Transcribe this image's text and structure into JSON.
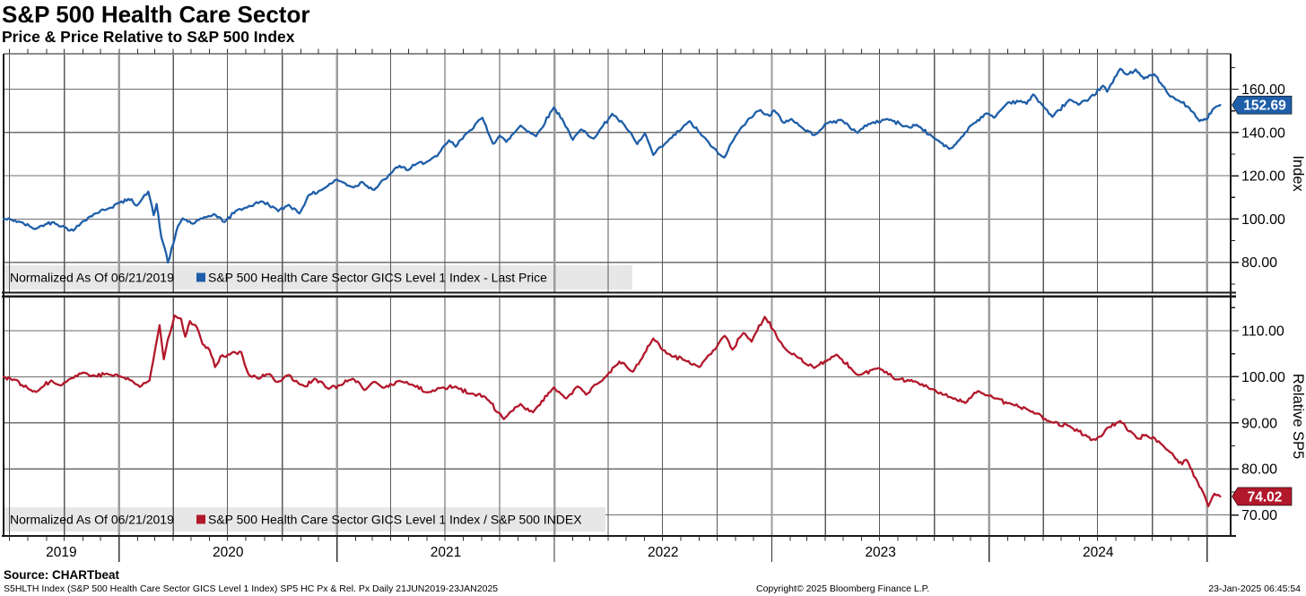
{
  "header": {
    "title": "S&P 500 Health Care Sector",
    "subtitle": "Price & Price Relative to S&P 500 Index"
  },
  "footer": {
    "source": "Source: CHARTbeat",
    "description": "S5HLTH Index (S&P 500 Health Care Sector GICS Level 1 Index) SP5 HC Px & Rel. Px  Daily 21JUN2019-23JAN2025",
    "copyright": "Copyright© 2025 Bloomberg Finance L.P.",
    "datetime": "23-Jan-2025 06:45:54"
  },
  "x_axis": {
    "years": [
      "2019",
      "2020",
      "2021",
      "2022",
      "2023",
      "2024"
    ],
    "range": [
      "2019-06-21",
      "2025-01-23"
    ]
  },
  "colors": {
    "background": "#ffffff",
    "h_grid": "#6e6e6e",
    "quarter_line": "#5a5a5a",
    "year_line": "#9c9c9c",
    "frame": "#1a1a1a",
    "legend_bg": "#e7e7e7",
    "blue": "#1e5ea8",
    "red": "#b2182b"
  },
  "chart_data": [
    {
      "type": "line",
      "panel": "price",
      "normalized_note": "Normalized As Of 06/21/2019",
      "legend_label": "S&P 500 Health Care Sector GICS Level 1 Index - Last Price",
      "axis_title": "Index",
      "line_color": "#1e5ea8",
      "last_price": "152.69",
      "yticks": [
        80,
        100,
        120,
        140,
        160
      ],
      "ylim": [
        66,
        176
      ],
      "points": [
        [
          "2019-06-21",
          100
        ],
        [
          "2019-07-05",
          99.6
        ],
        [
          "2019-07-19",
          98.6
        ],
        [
          "2019-08-06",
          96.3
        ],
        [
          "2019-08-15",
          95.6
        ],
        [
          "2019-08-30",
          97.6
        ],
        [
          "2019-09-13",
          98.6
        ],
        [
          "2019-10-02",
          96.2
        ],
        [
          "2019-10-16",
          94.6
        ],
        [
          "2019-11-01",
          99
        ],
        [
          "2019-11-22",
          102.6
        ],
        [
          "2019-12-13",
          104.8
        ],
        [
          "2020-01-02",
          107.6
        ],
        [
          "2020-01-22",
          109.2
        ],
        [
          "2020-01-31",
          106.2
        ],
        [
          "2020-02-19",
          112.7
        ],
        [
          "2020-02-28",
          101.8
        ],
        [
          "2020-03-04",
          107
        ],
        [
          "2020-03-12",
          91.5
        ],
        [
          "2020-03-17",
          87
        ],
        [
          "2020-03-23",
          79.9
        ],
        [
          "2020-04-01",
          88.5
        ],
        [
          "2020-04-09",
          96.8
        ],
        [
          "2020-04-17",
          100.3
        ],
        [
          "2020-05-04",
          97.8
        ],
        [
          "2020-05-20",
          100.2
        ],
        [
          "2020-06-08",
          102.3
        ],
        [
          "2020-06-26",
          98.6
        ],
        [
          "2020-07-15",
          103.8
        ],
        [
          "2020-07-31",
          105.2
        ],
        [
          "2020-08-28",
          108.2
        ],
        [
          "2020-09-18",
          105.2
        ],
        [
          "2020-09-24",
          103.6
        ],
        [
          "2020-10-12",
          106.6
        ],
        [
          "2020-10-30",
          102.6
        ],
        [
          "2020-11-13",
          110.6
        ],
        [
          "2020-12-08",
          113.8
        ],
        [
          "2020-12-31",
          118.2
        ],
        [
          "2021-01-29",
          114.6
        ],
        [
          "2021-02-12",
          117.2
        ],
        [
          "2021-03-04",
          113.4
        ],
        [
          "2021-04-01",
          121
        ],
        [
          "2021-04-16",
          124.6
        ],
        [
          "2021-04-30",
          122.6
        ],
        [
          "2021-05-14",
          125.4
        ],
        [
          "2021-06-03",
          126.8
        ],
        [
          "2021-06-18",
          129
        ],
        [
          "2021-07-08",
          136.4
        ],
        [
          "2021-07-19",
          133.4
        ],
        [
          "2021-08-06",
          139.5
        ],
        [
          "2021-09-02",
          146.8
        ],
        [
          "2021-09-20",
          134.8
        ],
        [
          "2021-10-01",
          138.6
        ],
        [
          "2021-10-12",
          135.6
        ],
        [
          "2021-11-05",
          143.2
        ],
        [
          "2021-12-01",
          138.2
        ],
        [
          "2021-12-31",
          151.6
        ],
        [
          "2022-01-14",
          146.2
        ],
        [
          "2022-02-01",
          136.6
        ],
        [
          "2022-02-15",
          141.4
        ],
        [
          "2022-03-08",
          137.2
        ],
        [
          "2022-04-08",
          148.6
        ],
        [
          "2022-04-29",
          143.2
        ],
        [
          "2022-05-20",
          134.6
        ],
        [
          "2022-06-02",
          139.6
        ],
        [
          "2022-06-16",
          129.6
        ],
        [
          "2022-07-08",
          135.4
        ],
        [
          "2022-08-16",
          145.2
        ],
        [
          "2022-09-02",
          139.8
        ],
        [
          "2022-09-23",
          133.2
        ],
        [
          "2022-10-03",
          130.2
        ],
        [
          "2022-10-13",
          128.4
        ],
        [
          "2022-11-01",
          138.4
        ],
        [
          "2022-11-23",
          146.4
        ],
        [
          "2022-12-13",
          150.4
        ],
        [
          "2022-12-28",
          147.6
        ],
        [
          "2023-01-05",
          150.2
        ],
        [
          "2023-01-20",
          144.6
        ],
        [
          "2023-02-03",
          146.2
        ],
        [
          "2023-02-24",
          141.4
        ],
        [
          "2023-03-13",
          138.8
        ],
        [
          "2023-04-03",
          144.2
        ],
        [
          "2023-04-28",
          145.8
        ],
        [
          "2023-05-25",
          139.8
        ],
        [
          "2023-06-12",
          143.9
        ],
        [
          "2023-07-14",
          146.2
        ],
        [
          "2023-08-21",
          142.2
        ],
        [
          "2023-09-01",
          143.6
        ],
        [
          "2023-09-27",
          138.2
        ],
        [
          "2023-10-26",
          132.4
        ],
        [
          "2023-11-06",
          134.6
        ],
        [
          "2023-12-01",
          143.2
        ],
        [
          "2023-12-27",
          148.8
        ],
        [
          "2024-01-09",
          146.8
        ],
        [
          "2024-02-01",
          153.8
        ],
        [
          "2024-02-23",
          154.6
        ],
        [
          "2024-03-04",
          153.2
        ],
        [
          "2024-03-15",
          157.6
        ],
        [
          "2024-04-16",
          147.2
        ],
        [
          "2024-05-15",
          155.2
        ],
        [
          "2024-05-30",
          152.8
        ],
        [
          "2024-06-14",
          154.6
        ],
        [
          "2024-07-10",
          161.6
        ],
        [
          "2024-07-17",
          158.8
        ],
        [
          "2024-08-08",
          169.4
        ],
        [
          "2024-08-20",
          166.8
        ],
        [
          "2024-09-03",
          169.1
        ],
        [
          "2024-09-17",
          164.8
        ],
        [
          "2024-10-04",
          166.9
        ],
        [
          "2024-10-18",
          161.6
        ],
        [
          "2024-10-31",
          156.6
        ],
        [
          "2024-11-13",
          154.9
        ],
        [
          "2024-12-02",
          151.4
        ],
        [
          "2024-12-19",
          145.2
        ],
        [
          "2025-01-02",
          146.6
        ],
        [
          "2025-01-10",
          150.6
        ],
        [
          "2025-01-23",
          152.69
        ]
      ]
    },
    {
      "type": "line",
      "panel": "relative",
      "normalized_note": "Normalized As Of 06/21/2019",
      "legend_label": "S&P 500 Health Care Sector GICS Level 1 Index / S&P 500 INDEX",
      "axis_title": "Relative SP5",
      "line_color": "#b2182b",
      "last_price": "74.02",
      "yticks": [
        70,
        80,
        90,
        100,
        110
      ],
      "ylim": [
        65.5,
        117.5
      ],
      "points": [
        [
          "2019-06-21",
          100
        ],
        [
          "2019-07-08",
          99.4
        ],
        [
          "2019-07-22",
          98.2
        ],
        [
          "2019-08-09",
          96.8
        ],
        [
          "2019-08-23",
          97.6
        ],
        [
          "2019-09-09",
          99.2
        ],
        [
          "2019-09-27",
          98.2
        ],
        [
          "2019-10-11",
          99.6
        ],
        [
          "2019-11-01",
          100.9
        ],
        [
          "2019-11-22",
          100.2
        ],
        [
          "2019-12-13",
          100.6
        ],
        [
          "2020-01-03",
          100.1
        ],
        [
          "2020-01-22",
          99.2
        ],
        [
          "2020-02-05",
          97.8
        ],
        [
          "2020-02-21",
          99.2
        ],
        [
          "2020-03-09",
          111.2
        ],
        [
          "2020-03-16",
          103.8
        ],
        [
          "2020-03-23",
          108.2
        ],
        [
          "2020-04-03",
          113.3
        ],
        [
          "2020-04-14",
          112.6
        ],
        [
          "2020-04-21",
          108.7
        ],
        [
          "2020-04-29",
          112.1
        ],
        [
          "2020-05-11",
          110.6
        ],
        [
          "2020-05-20",
          107.1
        ],
        [
          "2020-06-01",
          105.8
        ],
        [
          "2020-06-10",
          102.1
        ],
        [
          "2020-06-19",
          104.4
        ],
        [
          "2020-07-08",
          105.2
        ],
        [
          "2020-07-24",
          105.4
        ],
        [
          "2020-08-05",
          100.6
        ],
        [
          "2020-08-21",
          99.6
        ],
        [
          "2020-09-10",
          100.6
        ],
        [
          "2020-09-23",
          98.9
        ],
        [
          "2020-10-12",
          100.4
        ],
        [
          "2020-10-28",
          98.6
        ],
        [
          "2020-11-09",
          97.9
        ],
        [
          "2020-11-24",
          99.6
        ],
        [
          "2020-12-18",
          97.4
        ],
        [
          "2021-01-06",
          98.2
        ],
        [
          "2021-01-27",
          99.6
        ],
        [
          "2021-02-16",
          97.1
        ],
        [
          "2021-03-03",
          98.9
        ],
        [
          "2021-03-19",
          97.6
        ],
        [
          "2021-04-16",
          99.1
        ],
        [
          "2021-05-10",
          98.1
        ],
        [
          "2021-06-02",
          96.6
        ],
        [
          "2021-06-25",
          97.6
        ],
        [
          "2021-07-19",
          97.9
        ],
        [
          "2021-08-13",
          96.3
        ],
        [
          "2021-09-07",
          95.6
        ],
        [
          "2021-10-08",
          90.8
        ],
        [
          "2021-11-05",
          94.1
        ],
        [
          "2021-11-26",
          92.3
        ],
        [
          "2021-12-31",
          97.7
        ],
        [
          "2022-01-21",
          95.3
        ],
        [
          "2022-02-09",
          97.9
        ],
        [
          "2022-02-23",
          96.1
        ],
        [
          "2022-03-31",
          100.4
        ],
        [
          "2022-04-20",
          103.3
        ],
        [
          "2022-05-13",
          101.1
        ],
        [
          "2022-06-16",
          108.3
        ],
        [
          "2022-07-08",
          105.1
        ],
        [
          "2022-08-08",
          103.6
        ],
        [
          "2022-09-01",
          102.1
        ],
        [
          "2022-09-30",
          106.3
        ],
        [
          "2022-10-14",
          108.9
        ],
        [
          "2022-10-27",
          105.9
        ],
        [
          "2022-11-14",
          109.5
        ],
        [
          "2022-11-28",
          107.6
        ],
        [
          "2022-12-20",
          113
        ],
        [
          "2023-01-06",
          109.8
        ],
        [
          "2023-01-20",
          106.6
        ],
        [
          "2023-02-10",
          104.6
        ],
        [
          "2023-03-13",
          101.9
        ],
        [
          "2023-04-20",
          104.8
        ],
        [
          "2023-05-25",
          100.4
        ],
        [
          "2023-06-30",
          101.9
        ],
        [
          "2023-07-28",
          99.4
        ],
        [
          "2023-09-01",
          98.9
        ],
        [
          "2023-09-29",
          97.3
        ],
        [
          "2023-10-27",
          95.6
        ],
        [
          "2023-11-22",
          94.3
        ],
        [
          "2023-12-13",
          96.9
        ],
        [
          "2024-01-10",
          95.3
        ],
        [
          "2024-02-07",
          94.1
        ],
        [
          "2024-03-08",
          92.7
        ],
        [
          "2024-04-16",
          90.1
        ],
        [
          "2024-05-15",
          89.3
        ],
        [
          "2024-06-14",
          87
        ],
        [
          "2024-06-28",
          86.3
        ],
        [
          "2024-07-17",
          88.9
        ],
        [
          "2024-08-08",
          90.4
        ],
        [
          "2024-09-06",
          86.6
        ],
        [
          "2024-09-20",
          87.4
        ],
        [
          "2024-10-18",
          85.2
        ],
        [
          "2024-11-06",
          82.8
        ],
        [
          "2024-11-20",
          81
        ],
        [
          "2024-11-27",
          82
        ],
        [
          "2024-12-16",
          77.2
        ],
        [
          "2025-01-03",
          71.9
        ],
        [
          "2025-01-13",
          74.6
        ],
        [
          "2025-01-23",
          74.02
        ]
      ]
    }
  ]
}
